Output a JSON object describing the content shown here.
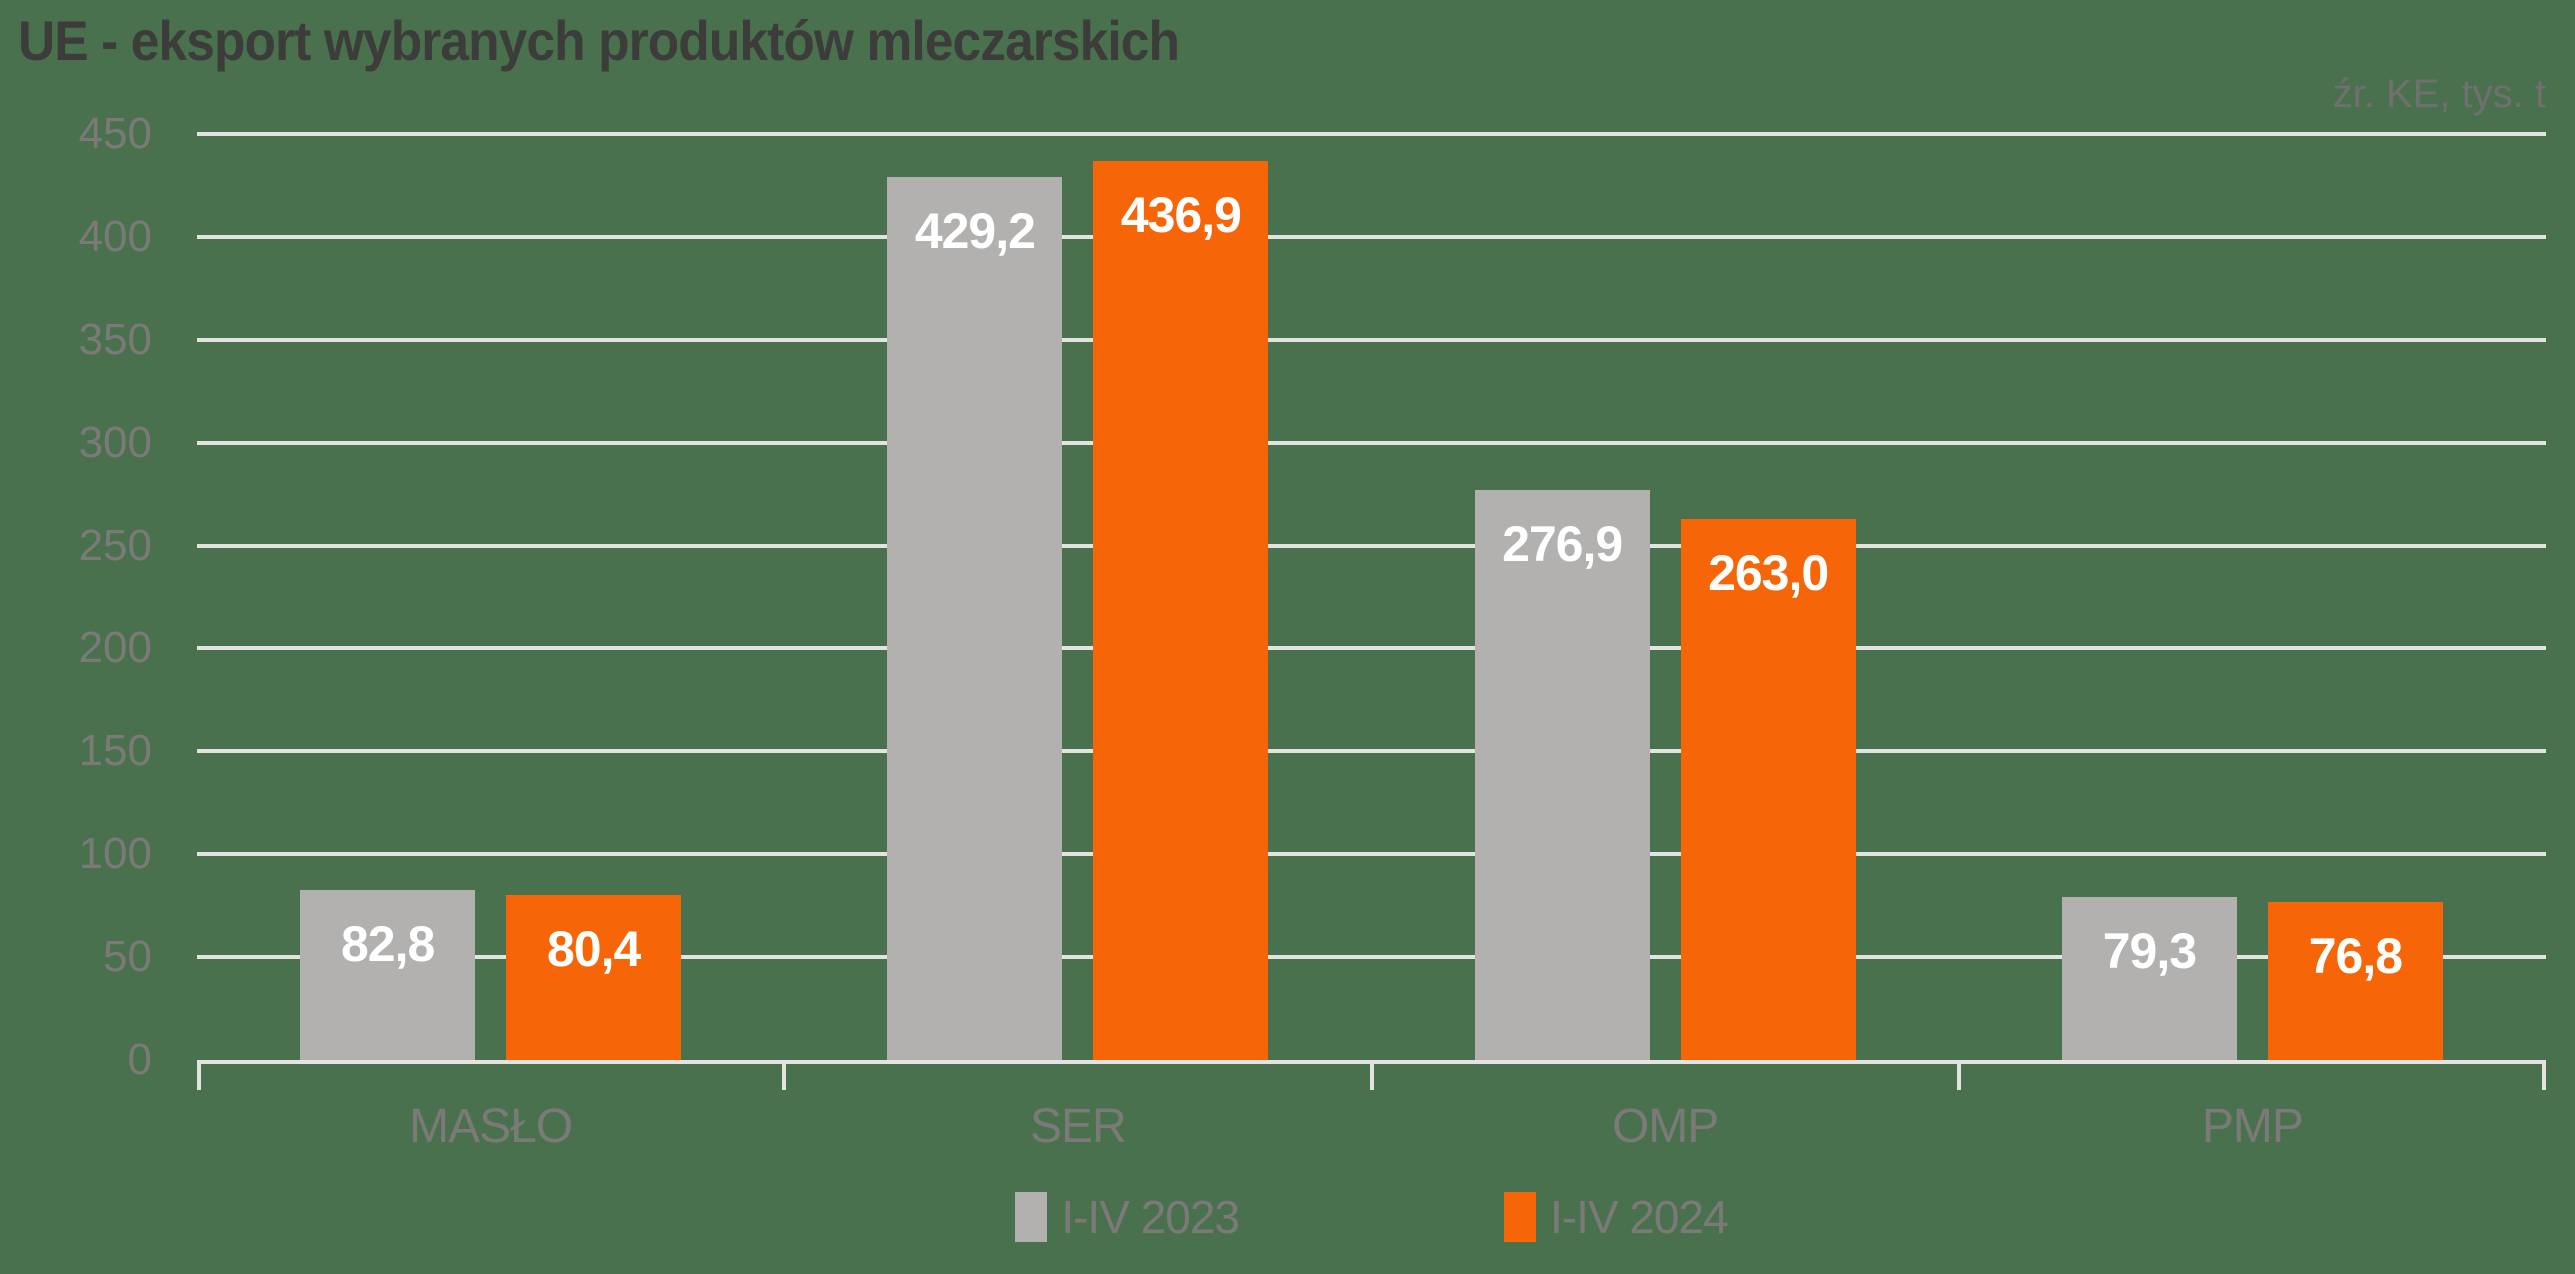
{
  "header": {
    "title": "UE - eksport wybranych produktów mleczarskich",
    "source_note": "źr. KE, tys. t"
  },
  "colors": {
    "background": "#4A714E",
    "gridline": "#E3E3DF",
    "axis_line": "#E3E3DF",
    "title_text": "#3C3C3B",
    "source_text": "#70706F",
    "axis_text": "#7B7A78",
    "bar_label_text": "#FFFFFF",
    "series_2023": "#B2B1B0",
    "series_2024": "#F66608"
  },
  "chart_data": {
    "type": "bar",
    "title": "UE - eksport wybranych produktów mleczarskich",
    "unit_note": "źr. KE, tys. t",
    "categories": [
      "MASŁO",
      "SER",
      "OMP",
      "PMP"
    ],
    "series": [
      {
        "name": "I-IV 2023",
        "color": "#B2B1B0",
        "values": [
          82.8,
          429.2,
          276.9,
          79.3
        ],
        "labels": [
          "82,8",
          "429,2",
          "276,9",
          "79,3"
        ]
      },
      {
        "name": "I-IV 2024",
        "color": "#F66608",
        "values": [
          80.4,
          436.9,
          263.0,
          76.8
        ],
        "labels": [
          "80,4",
          "436,9",
          "263,0",
          "76,8"
        ]
      }
    ],
    "ylim": [
      0,
      450
    ],
    "y_ticks": [
      0,
      50,
      100,
      150,
      200,
      250,
      300,
      350,
      400,
      450
    ],
    "grid": true,
    "legend_position": "bottom-center"
  }
}
